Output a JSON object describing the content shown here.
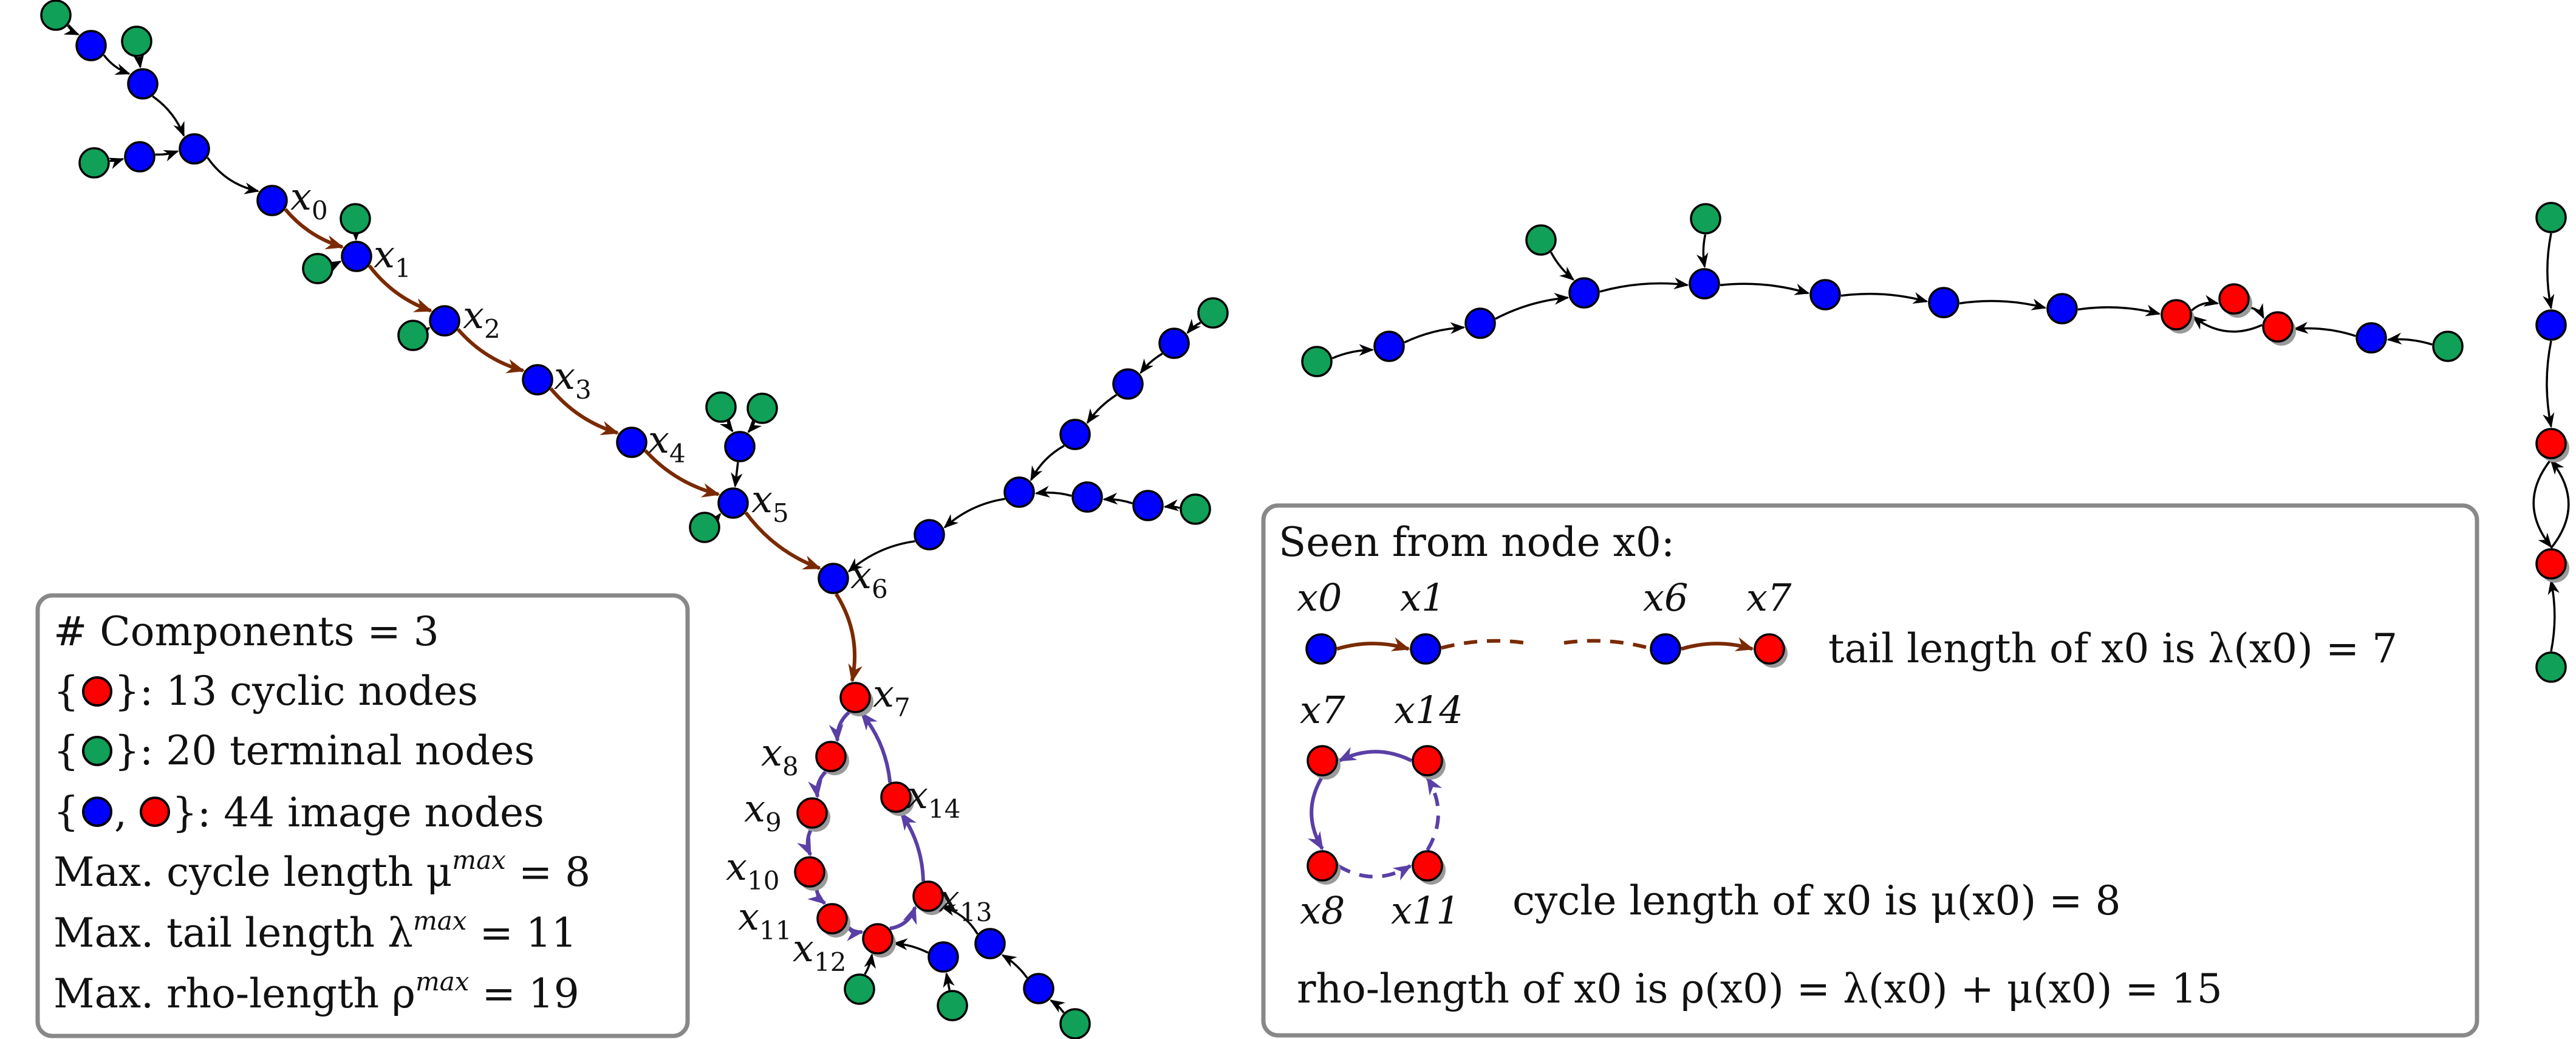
{
  "colors": {
    "image_node": "#0000ff",
    "terminal_node": "#10a058",
    "cyclic_node": "#ff0000",
    "tail_edge": "#7a2a00",
    "cycle_edge": "#5a3fa6",
    "plain_edge": "#000000",
    "box_border": "#888888"
  },
  "node_labels": {
    "x0": "x0",
    "x1": "x1",
    "x2": "x2",
    "x3": "x3",
    "x4": "x4",
    "x5": "x5",
    "x6": "x6",
    "x7": "x7",
    "x8": "x8",
    "x9": "x9",
    "x10": "x10",
    "x11": "x11",
    "x12": "x12",
    "x13": "x13",
    "x14": "x14"
  },
  "stats_box": {
    "components": "# Components = 3",
    "cyclic": "}: 13 cyclic nodes",
    "terminal": "}: 20 terminal nodes",
    "image": "}: 44 image nodes",
    "image_sep": ",",
    "brace_open": "{",
    "max_cycle": "Max. cycle length μ",
    "max_cycle_sup": "max",
    "max_cycle_val": " = 8",
    "max_tail": "Max. tail length λ",
    "max_tail_sup": "max",
    "max_tail_val": " = 11",
    "max_rho": "Max. rho-length ρ",
    "max_rho_sup": "max",
    "max_rho_val": " = 19"
  },
  "seen_box": {
    "title": "Seen from node x0:",
    "tail_labels": [
      "x0",
      "x1",
      "x6",
      "x7"
    ],
    "tail_text": "tail length of x0 is λ(x0) = 7",
    "cycle_labels": [
      "x7",
      "x14",
      "x8",
      "x11"
    ],
    "cycle_text": "cycle length of x0 is μ(x0) = 8",
    "rho_text": "rho-length of x0 is ρ(x0) = λ(x0) + μ(x0) = 15"
  }
}
